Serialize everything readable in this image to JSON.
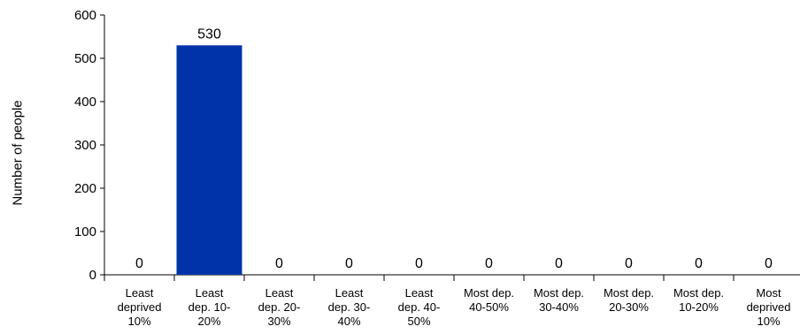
{
  "chart_data": {
    "type": "bar",
    "ylabel": "Number of people",
    "xlabel": "",
    "title": "",
    "ylim": [
      0,
      600
    ],
    "yticks": [
      0,
      100,
      200,
      300,
      400,
      500,
      600
    ],
    "grid": false,
    "legend": "none",
    "bar_color": "#0033aa",
    "categories": [
      [
        "Least",
        "deprived",
        "10%"
      ],
      [
        "Least",
        "dep. 10-",
        "20%"
      ],
      [
        "Least",
        "dep. 20-",
        "30%"
      ],
      [
        "Least",
        "dep. 30-",
        "40%"
      ],
      [
        "Least",
        "dep. 40-",
        "50%"
      ],
      [
        "Most dep.",
        "40-50%"
      ],
      [
        "Most dep.",
        "30-40%"
      ],
      [
        "Most dep.",
        "20-30%"
      ],
      [
        "Most dep.",
        "10-20%"
      ],
      [
        "Most",
        "deprived",
        "10%"
      ]
    ],
    "values": [
      0,
      530,
      0,
      0,
      0,
      0,
      0,
      0,
      0,
      0
    ],
    "data_labels": [
      "0",
      "530",
      "0",
      "0",
      "0",
      "0",
      "0",
      "0",
      "0",
      "0"
    ]
  }
}
